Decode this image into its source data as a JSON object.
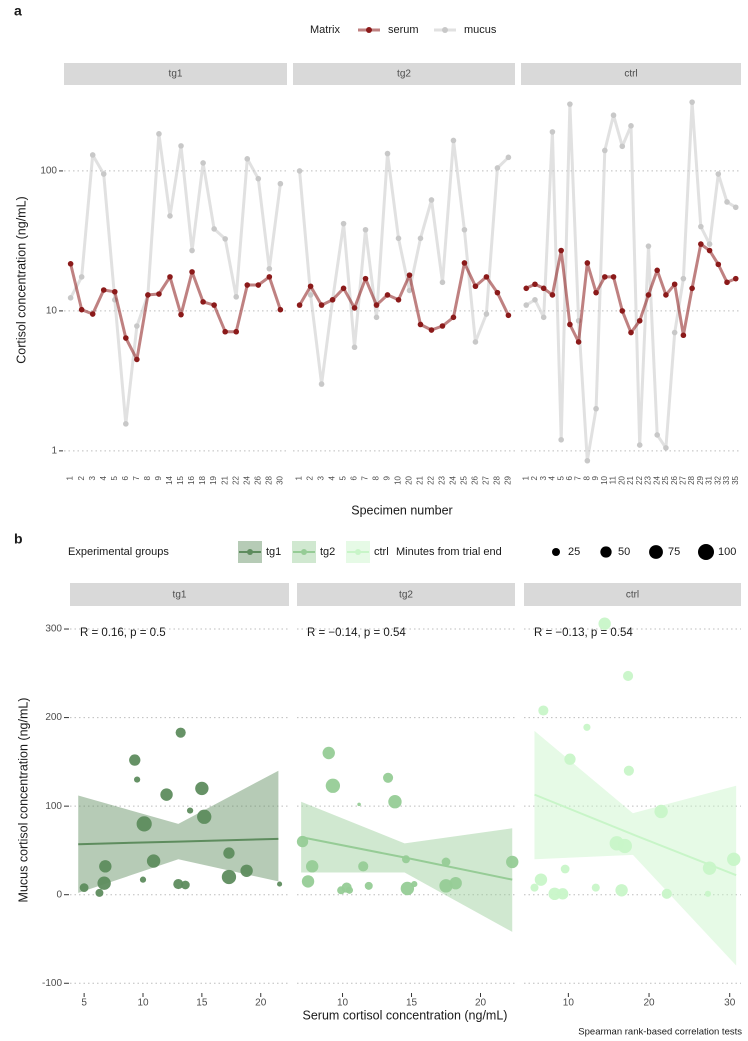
{
  "chart_data": [
    {
      "type": "line",
      "tag": "a",
      "y_label": "Cortisol concentration (ng/mL)",
      "x_label": "Specimen number",
      "legend_title": "Matrix",
      "legend_position": "top",
      "log_scale": true,
      "grid": true,
      "ylim": [
        0.73,
        411
      ],
      "yticks": [
        1,
        10,
        100
      ],
      "facets": [
        {
          "label": "tg1",
          "categories": [
            "1",
            "2",
            "3",
            "4",
            "5",
            "6",
            "7",
            "8",
            "9",
            "14",
            "15",
            "16",
            "18",
            "19",
            "21",
            "22",
            "24",
            "26",
            "28",
            "30"
          ],
          "series": [
            {
              "name": "serum",
              "color": "#8b1a1a",
              "values": [
                21.7,
                10.2,
                9.5,
                14.1,
                13.7,
                6.4,
                4.5,
                13,
                13.2,
                17.5,
                9.4,
                19,
                11.6,
                11,
                7.1,
                7.1,
                15.3,
                15.3,
                17.5,
                10.2
              ]
            },
            {
              "name": "mucus",
              "color": "#c8c8c8",
              "values": [
                12.4,
                17.5,
                130,
                95,
                12,
                1.56,
                7.8,
                13,
                184,
                47.7,
                151,
                27,
                114,
                38.5,
                32.7,
                12.6,
                122,
                88,
                20,
                81
              ]
            }
          ]
        },
        {
          "label": "tg2",
          "categories": [
            "1",
            "2",
            "3",
            "4",
            "5",
            "6",
            "7",
            "8",
            "9",
            "10",
            "20",
            "21",
            "22",
            "23",
            "24",
            "25",
            "26",
            "27",
            "28",
            "29"
          ],
          "series": [
            {
              "name": "serum",
              "color": "#8b1a1a",
              "values": [
                11,
                15,
                11,
                12,
                14.5,
                10.5,
                17,
                11,
                13,
                12,
                18,
                8,
                7.3,
                7.8,
                9,
                22,
                15,
                17.5,
                13.5,
                9.3
              ]
            },
            {
              "name": "mucus",
              "color": "#c8c8c8",
              "values": [
                100,
                13,
                3,
                12,
                42,
                5.5,
                38,
                9,
                133,
                33,
                14,
                33,
                62,
                16,
                165,
                38,
                6,
                9.5,
                105,
                125
              ]
            }
          ]
        },
        {
          "label": "ctrl",
          "categories": [
            "1",
            "2",
            "3",
            "4",
            "5",
            "6",
            "7",
            "8",
            "9",
            "10",
            "11",
            "20",
            "21",
            "22",
            "23",
            "24",
            "25",
            "26",
            "27",
            "28",
            "29",
            "31",
            "32",
            "33",
            "35"
          ],
          "series": [
            {
              "name": "serum",
              "color": "#8b1a1a",
              "values": [
                14.5,
                15.5,
                14.5,
                13,
                27,
                8,
                6,
                22,
                13.5,
                17.5,
                17.5,
                10,
                7,
                8.5,
                13,
                19.5,
                13,
                15.5,
                6.7,
                14.5,
                30,
                27,
                21.5,
                16,
                17
              ]
            },
            {
              "name": "mucus",
              "color": "#c8c8c8",
              "values": [
                11,
                12,
                9,
                190,
                1.2,
                300,
                8.5,
                0.85,
                2,
                140,
                250,
                150,
                210,
                1.1,
                29,
                1.3,
                1.05,
                7,
                17,
                310,
                40,
                30,
                95,
                60,
                55
              ]
            }
          ]
        }
      ]
    },
    {
      "type": "scatter",
      "tag": "b",
      "y_label": "Mucus cortisol concentration (ng/mL)",
      "x_label": "Serum cortisol concentration (ng/mL)",
      "legend_title": "Experimental groups",
      "size_legend_title": "Minutes from trial end",
      "size_legend": [
        25,
        50,
        75,
        100
      ],
      "caption": "Spearman rank-based correlation tests",
      "grid": true,
      "ylim": [
        -111,
        326
      ],
      "yticks": [
        -100,
        0,
        100,
        200,
        300
      ],
      "facets": [
        {
          "label": "tg1",
          "color": "#5e8c5e",
          "annotation": "R = 0.16, p = 0.5",
          "xlim": [
            3.8,
            22.4
          ],
          "xticks": [
            5,
            10,
            15,
            20
          ],
          "x": [
            5.0,
            6.3,
            6.7,
            6.8,
            9.3,
            9.5,
            10.0,
            10.1,
            10.9,
            12.0,
            13.2,
            13.0,
            13.6,
            14.0,
            15.0,
            15.2,
            17.3,
            17.3,
            18.8,
            21.6
          ],
          "y": [
            8,
            2,
            13,
            32,
            152,
            130,
            17,
            80,
            38,
            113,
            183,
            12,
            11,
            95,
            120,
            88,
            47,
            20,
            27,
            12
          ],
          "size": [
            30,
            25,
            70,
            60,
            50,
            15,
            15,
            90,
            70,
            60,
            40,
            40,
            30,
            15,
            70,
            80,
            50,
            80,
            60,
            10
          ],
          "fit": {
            "x": [
              4.5,
              13,
              21.5
            ],
            "y": [
              57,
              60,
              63
            ],
            "lower": [
              2,
              40,
              15
            ],
            "upper": [
              112,
              80,
              140
            ]
          }
        },
        {
          "label": "tg2",
          "color": "#96cc96",
          "annotation": "R = −0.14, p = 0.54",
          "xlim": [
            6.7,
            22.5
          ],
          "xticks": [
            10,
            15,
            20
          ],
          "x": [
            7.1,
            7.5,
            7.8,
            9.0,
            9.3,
            9.9,
            10.3,
            10.5,
            11.2,
            11.5,
            11.9,
            13.3,
            13.8,
            14.6,
            14.7,
            15.2,
            17.5,
            17.5,
            18.2,
            22.3
          ],
          "y": [
            60,
            15,
            32,
            160,
            123,
            5,
            8,
            5,
            102,
            32,
            10,
            132,
            105,
            40,
            7,
            12,
            37,
            10,
            13,
            37
          ],
          "size": [
            50,
            60,
            60,
            60,
            80,
            25,
            40,
            20,
            5,
            40,
            25,
            40,
            70,
            25,
            70,
            15,
            30,
            70,
            60,
            60
          ],
          "fit": {
            "x": [
              7,
              14.5,
              22.3
            ],
            "y": [
              65,
              42,
              17
            ],
            "lower": [
              25,
              25,
              -42
            ],
            "upper": [
              105,
              58,
              75
            ]
          }
        },
        {
          "label": "ctrl",
          "color": "#c8f5c8",
          "annotation": "R = −0.13, p = 0.54",
          "xlim": [
            4.5,
            31.4
          ],
          "xticks": [
            10,
            20,
            30
          ],
          "x": [
            5.8,
            6.6,
            6.9,
            8.3,
            10.2,
            9.3,
            9.6,
            12.3,
            13.4,
            14.5,
            16.0,
            16.6,
            17.0,
            17.4,
            17.5,
            21.5,
            22.2,
            27.3,
            27.5,
            30.5
          ],
          "y": [
            8,
            17,
            208,
            1,
            153,
            1,
            29,
            189,
            8,
            306,
            58,
            5,
            55,
            247,
            140,
            94,
            1,
            1,
            30,
            40
          ],
          "size": [
            25,
            60,
            40,
            60,
            50,
            50,
            30,
            20,
            25,
            60,
            80,
            60,
            80,
            40,
            40,
            70,
            40,
            15,
            70,
            70
          ],
          "fit": {
            "x": [
              5.8,
              18,
              30.8
            ],
            "y": [
              113,
              68,
              22
            ],
            "lower": [
              40,
              45,
              -80
            ],
            "upper": [
              185,
              92,
              123
            ]
          }
        }
      ]
    }
  ]
}
